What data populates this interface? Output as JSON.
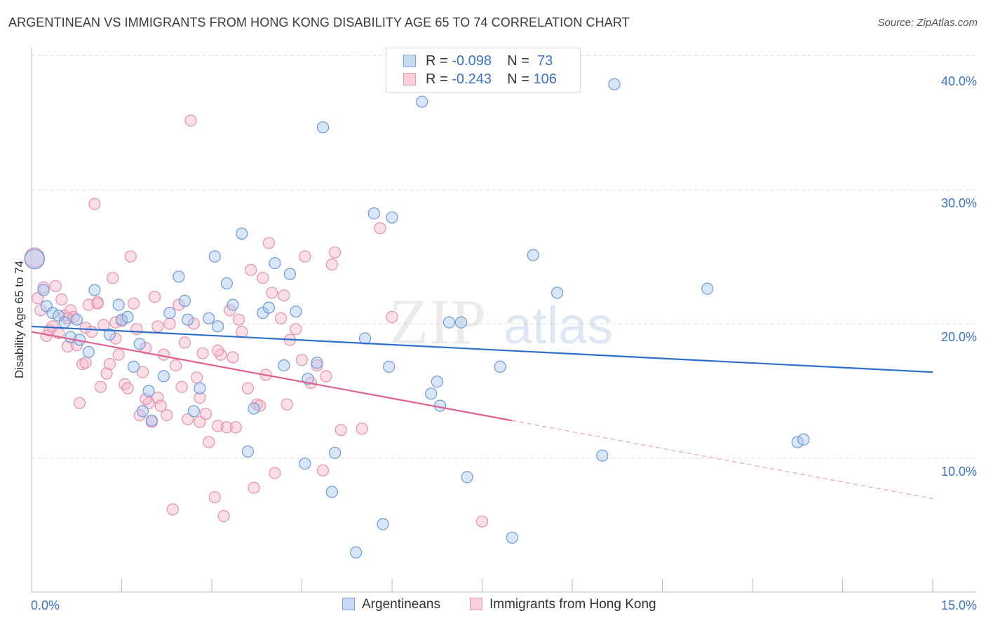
{
  "header": {
    "title": "ARGENTINEAN VS IMMIGRANTS FROM HONG KONG DISABILITY AGE 65 TO 74 CORRELATION CHART",
    "source": "Source: ZipAtlas.com"
  },
  "watermark": {
    "zip": "ZIP",
    "atlas": "atlas"
  },
  "legend": {
    "rows": [
      {
        "r_label": "R = ",
        "r_value": "-0.098",
        "n_label": "N = ",
        "n_value": " 73"
      },
      {
        "r_label": "R = ",
        "r_value": "-0.243",
        "n_label": "N = ",
        "n_value": "106"
      }
    ]
  },
  "colors": {
    "blue_fill": "#a8c8f0",
    "blue_stroke": "#6b9ad8",
    "blue_line": "#2f6fcc",
    "pink_fill": "#f6b7c9",
    "pink_stroke": "#e890aa",
    "pink_line": "#e06090",
    "axis_text": "#3b73c5",
    "grid": "#dddddd"
  },
  "chart_data": {
    "type": "scatter",
    "title": "ARGENTINEAN VS IMMIGRANTS FROM HONG KONG DISABILITY AGE 65 TO 74 CORRELATION CHART",
    "xlabel": "",
    "ylabel": "Disability Age 65 to 74",
    "xlim": [
      0,
      15
    ],
    "ylim": [
      0,
      40
    ],
    "x_tick_labels": [
      "0.0%",
      "15.0%"
    ],
    "y_ticks": [
      10,
      20,
      30,
      40
    ],
    "y_tick_labels": [
      "10.0%",
      "20.0%",
      "30.0%",
      "40.0%"
    ],
    "grid": true,
    "legend_position": "bottom",
    "series": [
      {
        "name": "Argentineans",
        "r": -0.098,
        "n": 73,
        "trend": {
          "x0": 0,
          "y0": 19.8,
          "x1": 15,
          "y1": 16.4
        },
        "points": [
          [
            0.05,
            24.8
          ],
          [
            0.2,
            22.5
          ],
          [
            0.25,
            21.3
          ],
          [
            0.35,
            20.8
          ],
          [
            0.45,
            20.6
          ],
          [
            0.55,
            20.1
          ],
          [
            0.65,
            19.0
          ],
          [
            0.75,
            20.3
          ],
          [
            0.8,
            18.8
          ],
          [
            0.95,
            17.9
          ],
          [
            1.05,
            22.5
          ],
          [
            1.3,
            19.2
          ],
          [
            1.45,
            21.4
          ],
          [
            1.5,
            20.3
          ],
          [
            1.6,
            20.5
          ],
          [
            1.7,
            16.8
          ],
          [
            1.8,
            18.5
          ],
          [
            1.85,
            13.5
          ],
          [
            1.95,
            15.0
          ],
          [
            2.0,
            12.8
          ],
          [
            2.2,
            16.1
          ],
          [
            2.3,
            20.8
          ],
          [
            2.45,
            23.5
          ],
          [
            2.55,
            21.7
          ],
          [
            2.6,
            20.3
          ],
          [
            2.7,
            13.5
          ],
          [
            2.8,
            15.2
          ],
          [
            2.95,
            20.4
          ],
          [
            3.05,
            25.0
          ],
          [
            3.1,
            19.8
          ],
          [
            3.25,
            23.0
          ],
          [
            3.35,
            21.4
          ],
          [
            3.5,
            26.7
          ],
          [
            3.6,
            10.5
          ],
          [
            3.7,
            13.7
          ],
          [
            3.85,
            20.8
          ],
          [
            3.95,
            21.2
          ],
          [
            4.05,
            24.5
          ],
          [
            4.2,
            16.9
          ],
          [
            4.3,
            23.7
          ],
          [
            4.4,
            20.9
          ],
          [
            4.55,
            9.6
          ],
          [
            4.6,
            15.9
          ],
          [
            4.75,
            17.1
          ],
          [
            4.85,
            34.6
          ],
          [
            5.0,
            7.5
          ],
          [
            5.05,
            10.4
          ],
          [
            5.4,
            3.0
          ],
          [
            5.55,
            18.9
          ],
          [
            5.7,
            28.2
          ],
          [
            5.85,
            5.1
          ],
          [
            5.95,
            16.8
          ],
          [
            6.0,
            27.9
          ],
          [
            6.5,
            36.5
          ],
          [
            6.65,
            14.8
          ],
          [
            6.75,
            15.7
          ],
          [
            6.8,
            13.9
          ],
          [
            6.95,
            20.1
          ],
          [
            7.15,
            20.1
          ],
          [
            7.25,
            8.6
          ],
          [
            7.3,
            38.7
          ],
          [
            7.8,
            16.8
          ],
          [
            8.0,
            4.1
          ],
          [
            8.35,
            25.1
          ],
          [
            8.75,
            22.3
          ],
          [
            9.5,
            10.2
          ],
          [
            9.7,
            37.8
          ],
          [
            11.25,
            22.6
          ],
          [
            12.75,
            11.2
          ],
          [
            12.85,
            11.4
          ]
        ]
      },
      {
        "name": "Immigrants from Hong Kong",
        "r": -0.243,
        "n": 106,
        "trend": {
          "x0": 0,
          "y0": 19.4,
          "x1": 8.0,
          "y1": 12.8,
          "dash_x1": 15,
          "dash_y1": 7.0
        },
        "points": [
          [
            0.05,
            24.9
          ],
          [
            0.15,
            21.0
          ],
          [
            0.2,
            22.7
          ],
          [
            0.3,
            19.5
          ],
          [
            0.35,
            19.8
          ],
          [
            0.45,
            19.3
          ],
          [
            0.5,
            21.8
          ],
          [
            0.55,
            20.6
          ],
          [
            0.6,
            18.3
          ],
          [
            0.65,
            21.0
          ],
          [
            0.7,
            20.5
          ],
          [
            0.75,
            18.4
          ],
          [
            0.8,
            14.1
          ],
          [
            0.85,
            17.0
          ],
          [
            0.9,
            19.7
          ],
          [
            0.95,
            21.4
          ],
          [
            1.0,
            19.4
          ],
          [
            1.05,
            28.9
          ],
          [
            1.1,
            21.6
          ],
          [
            1.15,
            15.3
          ],
          [
            1.2,
            19.9
          ],
          [
            1.25,
            16.3
          ],
          [
            1.3,
            17.0
          ],
          [
            1.35,
            23.4
          ],
          [
            1.4,
            18.9
          ],
          [
            1.45,
            17.7
          ],
          [
            1.5,
            20.2
          ],
          [
            1.55,
            15.5
          ],
          [
            1.6,
            15.2
          ],
          [
            1.65,
            25.0
          ],
          [
            1.7,
            21.5
          ],
          [
            1.75,
            19.6
          ],
          [
            1.8,
            13.2
          ],
          [
            1.85,
            16.4
          ],
          [
            1.9,
            18.2
          ],
          [
            1.95,
            14.1
          ],
          [
            2.0,
            12.7
          ],
          [
            2.05,
            22.0
          ],
          [
            2.1,
            14.5
          ],
          [
            2.15,
            13.9
          ],
          [
            2.2,
            17.7
          ],
          [
            2.25,
            13.2
          ],
          [
            2.3,
            20.0
          ],
          [
            2.35,
            6.2
          ],
          [
            2.4,
            16.9
          ],
          [
            2.45,
            21.4
          ],
          [
            2.5,
            15.3
          ],
          [
            2.55,
            18.6
          ],
          [
            2.6,
            12.9
          ],
          [
            2.65,
            35.1
          ],
          [
            2.7,
            20.0
          ],
          [
            2.75,
            16.0
          ],
          [
            2.8,
            12.7
          ],
          [
            2.85,
            17.8
          ],
          [
            2.9,
            13.3
          ],
          [
            2.95,
            11.2
          ],
          [
            3.05,
            7.1
          ],
          [
            3.1,
            12.4
          ],
          [
            3.15,
            17.7
          ],
          [
            3.2,
            5.7
          ],
          [
            3.25,
            12.3
          ],
          [
            3.3,
            21.0
          ],
          [
            3.35,
            17.5
          ],
          [
            3.4,
            12.3
          ],
          [
            3.45,
            20.3
          ],
          [
            3.5,
            19.4
          ],
          [
            3.6,
            15.2
          ],
          [
            3.65,
            24.0
          ],
          [
            3.7,
            7.8
          ],
          [
            3.75,
            14.0
          ],
          [
            3.8,
            13.9
          ],
          [
            3.85,
            23.4
          ],
          [
            3.9,
            16.2
          ],
          [
            3.95,
            26.0
          ],
          [
            4.0,
            22.3
          ],
          [
            4.05,
            8.9
          ],
          [
            4.15,
            20.4
          ],
          [
            4.2,
            22.1
          ],
          [
            4.25,
            14.0
          ],
          [
            4.3,
            18.8
          ],
          [
            4.4,
            19.6
          ],
          [
            4.5,
            17.3
          ],
          [
            4.55,
            25.0
          ],
          [
            4.65,
            15.6
          ],
          [
            4.75,
            16.9
          ],
          [
            4.85,
            9.1
          ],
          [
            4.9,
            16.1
          ],
          [
            5.0,
            24.4
          ],
          [
            5.05,
            25.3
          ],
          [
            5.15,
            12.1
          ],
          [
            5.5,
            12.2
          ],
          [
            5.8,
            27.1
          ],
          [
            6.0,
            20.5
          ],
          [
            7.5,
            5.3
          ],
          [
            0.1,
            21.9
          ],
          [
            0.25,
            19.1
          ],
          [
            0.4,
            22.8
          ],
          [
            0.6,
            20.4
          ],
          [
            0.9,
            17.1
          ],
          [
            1.1,
            21.5
          ],
          [
            1.4,
            20.1
          ],
          [
            1.9,
            14.4
          ],
          [
            2.1,
            19.8
          ],
          [
            2.8,
            14.5
          ],
          [
            3.1,
            18.0
          ]
        ]
      }
    ]
  }
}
